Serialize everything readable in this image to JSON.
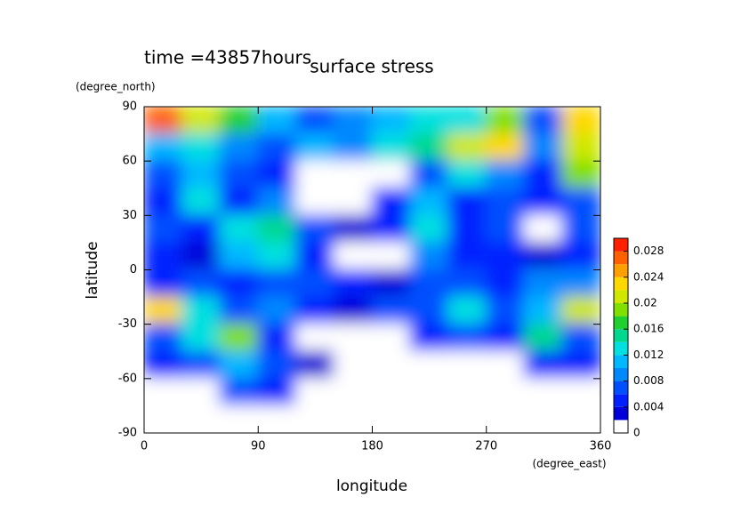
{
  "chart_data": {
    "type": "contour",
    "time_label": "time =43857hours",
    "title": "surface stress",
    "x_label": "longitude",
    "x_units": "(degree_east)",
    "y_label": "latitude",
    "y_units": "(degree_north)",
    "xlim": [
      0,
      360
    ],
    "xticks": [
      0,
      90,
      180,
      270,
      360
    ],
    "ylim": [
      -90,
      90
    ],
    "yticks": [
      -90,
      -60,
      -30,
      0,
      30,
      60,
      90
    ],
    "x": [
      15,
      45,
      75,
      105,
      135,
      165,
      195,
      225,
      255,
      285,
      315,
      345
    ],
    "y": [
      82.5,
      67.5,
      52.5,
      37.5,
      22.5,
      7.5,
      -7.5,
      -22.5,
      -37.5,
      -52.5,
      -67.5,
      -82.5
    ],
    "z": [
      [
        0.026,
        0.02,
        0.016,
        0.01,
        0.006,
        0.008,
        0.01,
        0.012,
        0.012,
        0.018,
        0.006,
        0.022
      ],
      [
        0.01,
        0.012,
        0.008,
        0.006,
        0.01,
        0.008,
        0.012,
        0.014,
        0.02,
        0.022,
        0.008,
        0.02
      ],
      [
        0.006,
        0.01,
        0.006,
        0.004,
        0,
        0,
        0,
        0.006,
        0.012,
        0.008,
        0.004,
        0.018
      ],
      [
        0.004,
        0.012,
        0.004,
        0.008,
        0,
        0,
        0.004,
        0.01,
        0.004,
        0.006,
        0.004,
        0.006
      ],
      [
        0.006,
        0.004,
        0.012,
        0.014,
        0.006,
        0.002,
        0.004,
        0.012,
        0.004,
        0.006,
        0,
        0.006
      ],
      [
        0.004,
        0.002,
        0.01,
        0.012,
        0.004,
        0,
        0,
        0.008,
        0.004,
        0.004,
        0.002,
        0.004
      ],
      [
        0.004,
        0.006,
        0.004,
        0.006,
        0.006,
        0.004,
        0.002,
        0.006,
        0.006,
        0.004,
        0.008,
        0.008
      ],
      [
        0.022,
        0.012,
        0.006,
        0.008,
        0.004,
        0.002,
        0.006,
        0.006,
        0.012,
        0.006,
        0.01,
        0.02
      ],
      [
        0.006,
        0.012,
        0.018,
        0.004,
        0,
        0,
        0,
        0.004,
        0.006,
        0.004,
        0.014,
        0.006
      ],
      [
        0.004,
        0.006,
        0.01,
        0.006,
        0.002,
        0,
        0,
        0,
        0,
        0,
        0.004,
        0.004
      ],
      [
        0,
        0,
        0.006,
        0.004,
        0,
        0,
        0,
        0,
        0,
        0,
        0,
        0
      ],
      [
        0,
        0,
        0,
        0,
        0,
        0,
        0,
        0,
        0,
        0,
        0,
        0
      ]
    ],
    "levels": [
      0,
      0.002,
      0.004,
      0.006,
      0.008,
      0.01,
      0.012,
      0.014,
      0.016,
      0.018,
      0.02,
      0.022,
      0.024,
      0.026,
      0.028,
      0.03
    ],
    "colors": [
      "#ffffff",
      "#0000d8",
      "#0020ff",
      "#0050ff",
      "#0088ff",
      "#00b8ff",
      "#00e0e0",
      "#00d890",
      "#20d030",
      "#80e000",
      "#d0e800",
      "#ffd800",
      "#ffa000",
      "#ff6000",
      "#ff2000"
    ],
    "clim": [
      0,
      0.03
    ],
    "cticks": [
      0,
      0.004,
      0.008,
      0.012,
      0.016,
      0.02,
      0.024,
      0.028
    ]
  }
}
